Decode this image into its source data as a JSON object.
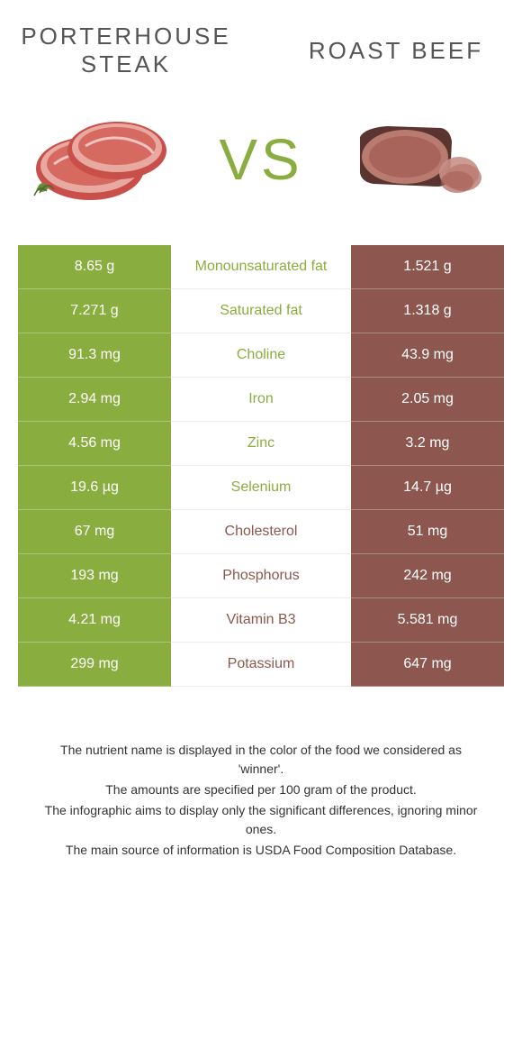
{
  "header": {
    "left_title": "PORTERHOUSE STEAK",
    "right_title": "ROAST BEEF",
    "vs": "VS"
  },
  "colors": {
    "green": "#8aad3f",
    "brown": "#8d574f",
    "white": "#ffffff"
  },
  "rows": [
    {
      "left": "8.65 g",
      "label": "Monounsaturated fat",
      "right": "1.521 g",
      "winner": "left"
    },
    {
      "left": "7.271 g",
      "label": "Saturated fat",
      "right": "1.318 g",
      "winner": "left"
    },
    {
      "left": "91.3 mg",
      "label": "Choline",
      "right": "43.9 mg",
      "winner": "left"
    },
    {
      "left": "2.94 mg",
      "label": "Iron",
      "right": "2.05 mg",
      "winner": "left"
    },
    {
      "left": "4.56 mg",
      "label": "Zinc",
      "right": "3.2 mg",
      "winner": "left"
    },
    {
      "left": "19.6 µg",
      "label": "Selenium",
      "right": "14.7 µg",
      "winner": "left"
    },
    {
      "left": "67 mg",
      "label": "Cholesterol",
      "right": "51 mg",
      "winner": "right"
    },
    {
      "left": "193 mg",
      "label": "Phosphorus",
      "right": "242 mg",
      "winner": "right"
    },
    {
      "left": "4.21 mg",
      "label": "Vitamin B3",
      "right": "5.581 mg",
      "winner": "right"
    },
    {
      "left": "299 mg",
      "label": "Potassium",
      "right": "647 mg",
      "winner": "right"
    }
  ],
  "footer": {
    "line1": "The nutrient name is displayed in the color of the food we considered as 'winner'.",
    "line2": "The amounts are specified per 100 gram of the product.",
    "line3": "The infographic aims to display only the significant differences, ignoring minor ones.",
    "line4": "The main source of information is USDA Food Composition Database."
  }
}
